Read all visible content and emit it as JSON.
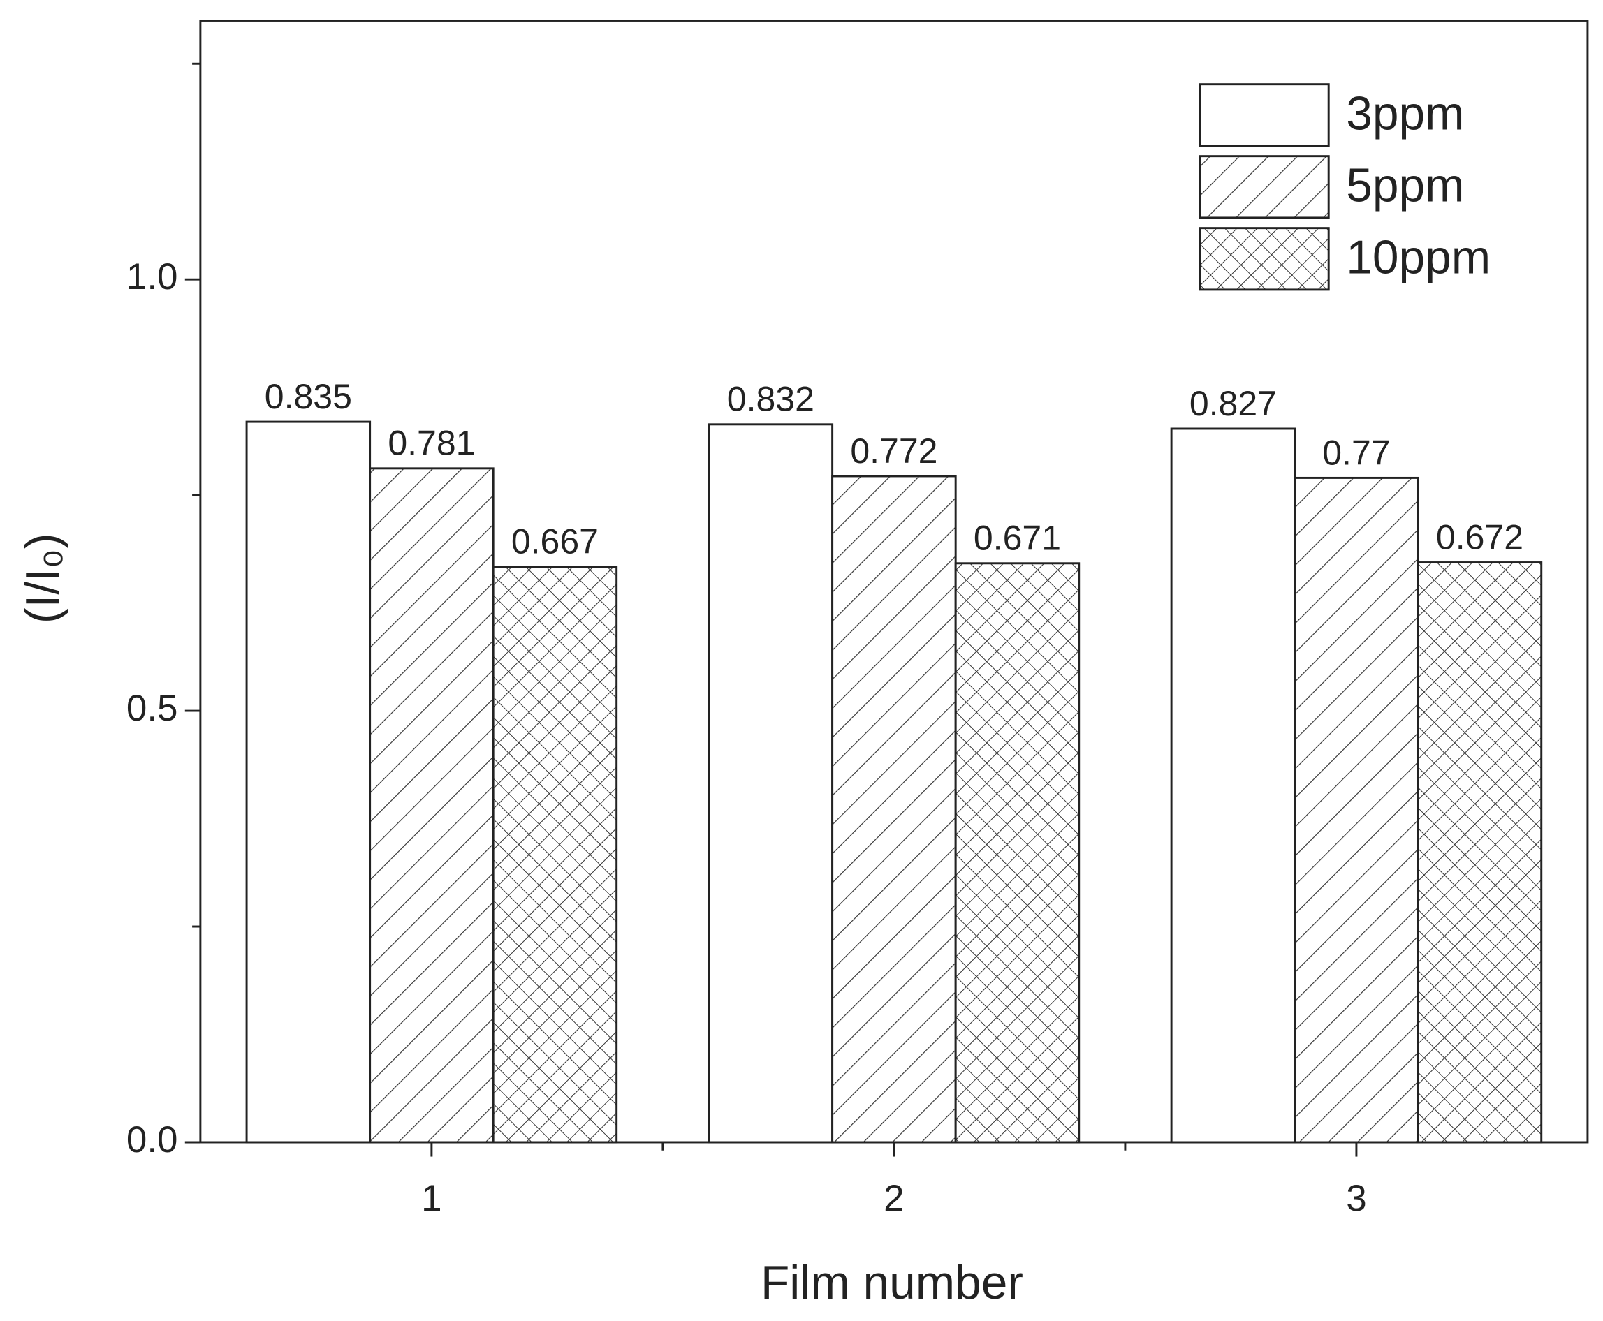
{
  "chart_data": {
    "type": "bar",
    "xlabel": "Film number",
    "ylabel": "(I/I₀)",
    "categories": [
      "1",
      "2",
      "3"
    ],
    "series": [
      {
        "name": "3ppm",
        "color": "#ffffff",
        "hatch": "none",
        "values": [
          0.835,
          0.832,
          0.827
        ]
      },
      {
        "name": "5ppm",
        "color": "#ffffff",
        "hatch": "diagonal",
        "values": [
          0.781,
          0.772,
          0.77
        ]
      },
      {
        "name": "10ppm",
        "color": "#ffffff",
        "hatch": "cross",
        "values": [
          0.667,
          0.671,
          0.672
        ]
      }
    ],
    "ylim": [
      0,
      1.3
    ],
    "yticks": [
      {
        "value": 0,
        "label": "0.0"
      },
      0.5,
      {
        "value": 1,
        "label": "1.0"
      }
    ],
    "yminorticks": [
      0.25,
      0.75,
      1.25
    ],
    "legend": "upper right",
    "grid": false
  }
}
